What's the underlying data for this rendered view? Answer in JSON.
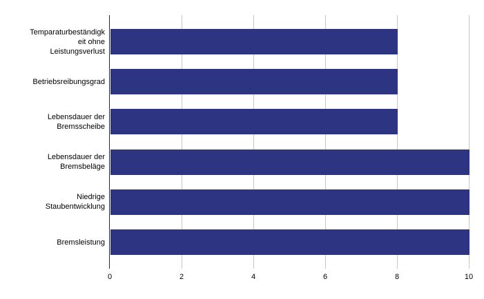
{
  "chart_data": {
    "type": "bar",
    "orientation": "horizontal",
    "title": "",
    "xlabel": "",
    "ylabel": "",
    "categories": [
      "Temparaturbeständigkeit ohne Leistungsverlust",
      "Betriebsreibungsgrad",
      "Lebensdauer der Bremsscheibe",
      "Lebensdauer der Bremsbeläge",
      "Niedrige Staubentwicklung",
      "Bremsleistung"
    ],
    "category_lines": [
      [
        "Temparaturbeständigk",
        "eit ohne",
        "Leistungsverlust"
      ],
      [
        "Betriebsreibungsgrad"
      ],
      [
        "Lebensdauer der",
        "Bremsscheibe"
      ],
      [
        "Lebensdauer der",
        "Bremsbeläge"
      ],
      [
        "Niedrige",
        "Staubentwicklung"
      ],
      [
        "Bremsleistung"
      ]
    ],
    "values": [
      8,
      8,
      8,
      10,
      10,
      10
    ],
    "xlim": [
      0,
      10
    ],
    "x_ticks": [
      0,
      2,
      4,
      6,
      8,
      10
    ],
    "grid": true,
    "legend": false,
    "colors": {
      "bar": "#2d3482",
      "gridline": "#c6c6c6",
      "axis": "#262626",
      "text": "#000000",
      "background": "#ffffff"
    }
  }
}
